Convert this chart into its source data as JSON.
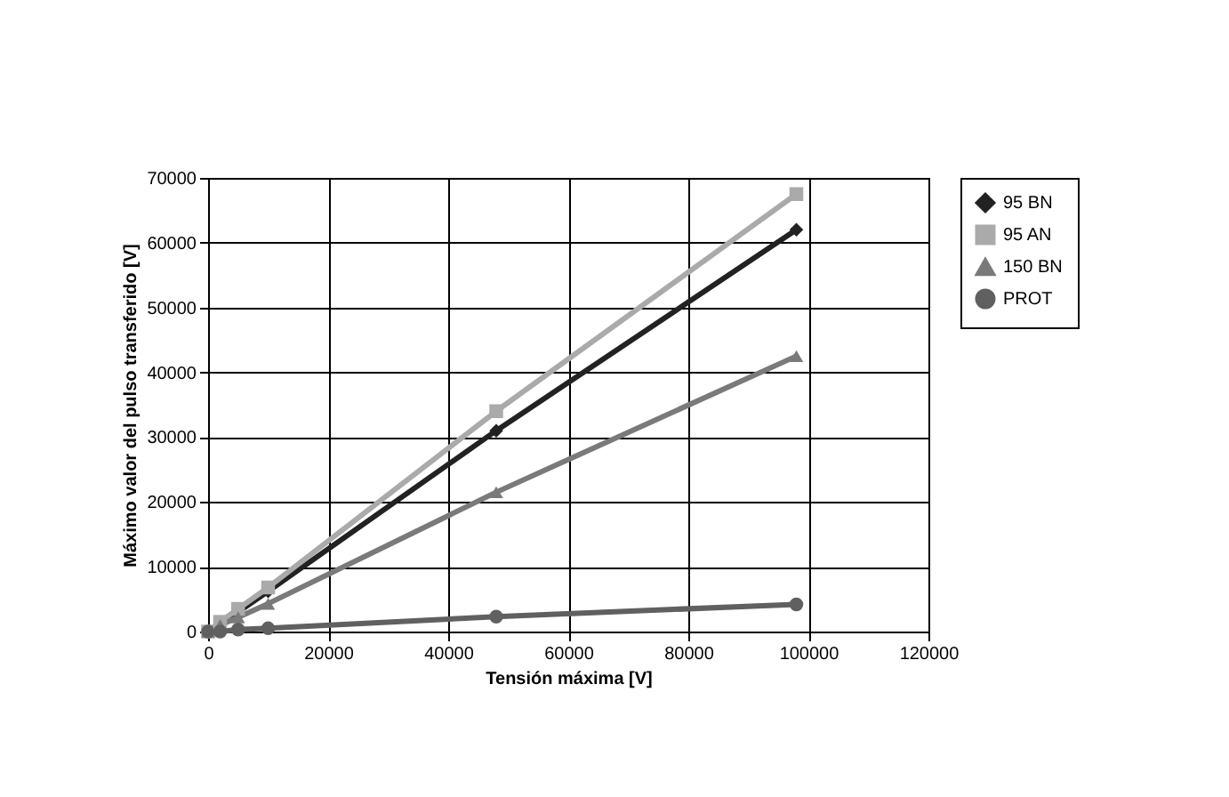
{
  "chart_data": {
    "type": "line",
    "xlabel": "Tensión máxima [V]",
    "ylabel": "Máximo valor del pulso transferido [V]",
    "x": [
      0,
      2000,
      5000,
      10000,
      48000,
      98000
    ],
    "series": [
      {
        "name": "95 BN",
        "color": "#222222",
        "marker": "diamond",
        "values": [
          0,
          1300,
          3000,
          6200,
          31000,
          62000
        ]
      },
      {
        "name": "95 AN",
        "color": "#aaaaaa",
        "marker": "square",
        "values": [
          0,
          1500,
          3500,
          6800,
          34000,
          67500
        ]
      },
      {
        "name": "150 BN",
        "color": "#7a7a7a",
        "marker": "triangle",
        "values": [
          0,
          1000,
          2200,
          4300,
          21500,
          42500
        ]
      },
      {
        "name": "PROT",
        "color": "#606060",
        "marker": "circle",
        "values": [
          0,
          0,
          300,
          500,
          2300,
          4200
        ]
      }
    ],
    "xlim": [
      0,
      120000
    ],
    "xticks": [
      0,
      20000,
      40000,
      60000,
      80000,
      100000,
      120000
    ],
    "ylim": [
      0,
      70000
    ],
    "yticks": [
      0,
      10000,
      20000,
      30000,
      40000,
      50000,
      60000,
      70000
    ],
    "grid": true,
    "legend": "right",
    "line_style": "solid"
  }
}
